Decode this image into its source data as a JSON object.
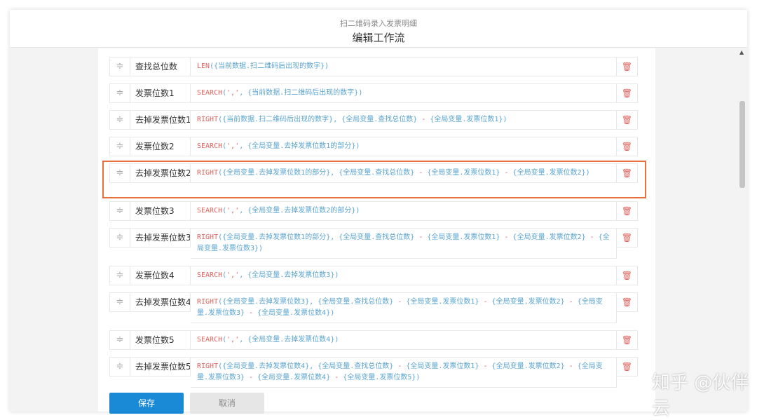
{
  "header": {
    "subtitle": "扫二维码录入发票明细",
    "title": "编辑工作流"
  },
  "colors": {
    "accent": "#1a8ad6",
    "highlight": "#e8703a",
    "function": "#e0645e",
    "variable": "#5aa4cf"
  },
  "rows": [
    {
      "name": "查找总位数",
      "formula": [
        [
          "fn",
          "LEN"
        ],
        [
          "v",
          "({当前数据.扫二维码后出现的数字})"
        ]
      ]
    },
    {
      "name": "发票位数1",
      "formula": [
        [
          "fn",
          "SEARCH"
        ],
        [
          "v",
          "("
        ],
        [
          "str",
          "','"
        ],
        [
          "v",
          ", {当前数据.扫二维码后出现的数字})"
        ]
      ]
    },
    {
      "name": "去掉发票位数1",
      "formula": [
        [
          "fn",
          "RIGHT"
        ],
        [
          "v",
          "({当前数据.扫二维码后出现的数字}, {全局变量.查找总位数} "
        ],
        [
          "op",
          "-"
        ],
        [
          "v",
          " {全局变量.发票位数1})"
        ]
      ]
    },
    {
      "name": "发票位数2",
      "formula": [
        [
          "fn",
          "SEARCH"
        ],
        [
          "v",
          "("
        ],
        [
          "str",
          "','"
        ],
        [
          "v",
          ", {全局变量.去掉发票位数1的部分})"
        ]
      ]
    },
    {
      "name": "去掉发票位数2",
      "formula": [
        [
          "fn",
          "RIGHT"
        ],
        [
          "v",
          "({全局变量.去掉发票位数1的部分}, {全局变量.查找总位数} "
        ],
        [
          "op",
          "-"
        ],
        [
          "v",
          " {全局变量.发票位数1} "
        ],
        [
          "op",
          "-"
        ],
        [
          "v",
          " {全局变量.发票位数2})"
        ]
      ]
    },
    {
      "name": "发票位数3",
      "formula": [
        [
          "fn",
          "SEARCH"
        ],
        [
          "v",
          "("
        ],
        [
          "str",
          "','"
        ],
        [
          "v",
          ", {全局变量.去掉发票位数2的部分})"
        ]
      ]
    },
    {
      "name": "去掉发票位数3",
      "formula": [
        [
          "fn",
          "RIGHT"
        ],
        [
          "v",
          "({全局变量.去掉发票位数1的部分}, {全局变量.查找总位数} "
        ],
        [
          "op",
          "-"
        ],
        [
          "v",
          " {全局变量.发票位数1} "
        ],
        [
          "op",
          "-"
        ],
        [
          "v",
          " {全局变量.发票位数2} "
        ],
        [
          "op",
          "-"
        ],
        [
          "v",
          " {全局变量.发票位数3})"
        ]
      ]
    },
    {
      "name": "发票位数4",
      "formula": [
        [
          "fn",
          "SEARCH"
        ],
        [
          "v",
          "("
        ],
        [
          "str",
          "','"
        ],
        [
          "v",
          ", {全局变量.去掉发票位数3})"
        ]
      ]
    },
    {
      "name": "去掉发票位数4",
      "formula": [
        [
          "fn",
          "RIGHT"
        ],
        [
          "v",
          "({全局变量.去掉发票位数3}, {全局变量.查找总位数} "
        ],
        [
          "op",
          "-"
        ],
        [
          "v",
          " {全局变量.发票位数1} "
        ],
        [
          "op",
          "-"
        ],
        [
          "v",
          " {全局变量.发票位数2} "
        ],
        [
          "op",
          "-"
        ],
        [
          "v",
          " {全局变量.发票位数3} "
        ],
        [
          "op",
          "-"
        ],
        [
          "v",
          " {全局变量.发票位数4})"
        ]
      ]
    },
    {
      "name": "发票位数5",
      "formula": [
        [
          "fn",
          "SEARCH"
        ],
        [
          "v",
          "("
        ],
        [
          "str",
          "','"
        ],
        [
          "v",
          ", {全局变量.去掉发票位数4})"
        ]
      ]
    },
    {
      "name": "去掉发票位数5",
      "formula": [
        [
          "fn",
          "RIGHT"
        ],
        [
          "v",
          "({全局变量.去掉发票位数4}, {全局变量.查找总位数} "
        ],
        [
          "op",
          "-"
        ],
        [
          "v",
          " {全局变量.发票位数1} "
        ],
        [
          "op",
          "-"
        ],
        [
          "v",
          " {全局变量.发票位数2} "
        ],
        [
          "op",
          "-"
        ],
        [
          "v",
          " {全局变量.发票位数3} "
        ],
        [
          "op",
          "-"
        ],
        [
          "v",
          " {全局变量.发票位数4} "
        ],
        [
          "op",
          "-"
        ],
        [
          "v",
          " {全局变量.发票位数5})"
        ]
      ]
    }
  ],
  "icons": {
    "drag": "drag-handle-icon",
    "delete": "trash-icon"
  },
  "buttons": {
    "save": "保存",
    "cancel": "取消"
  },
  "watermark": "知乎 @伙伴云"
}
